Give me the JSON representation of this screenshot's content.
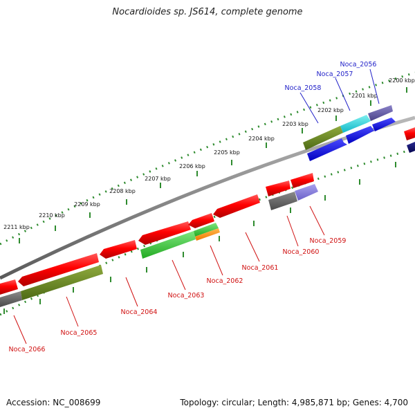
{
  "title": "Nocardioides sp. JS614, complete genome",
  "footer": {
    "accession": "Accession: NC_008699",
    "topology": "Topology: circular; Length: 4,985,871 bp; Genes: 4,700"
  },
  "colors": {
    "backbone": "#8a8a8a",
    "ruler": "#2e8b2e",
    "label_forward": "#1f1fc8",
    "label_reverse": "#d01010"
  },
  "ruler_ticks": [
    "2200 kbp",
    "2201 kbp",
    "2202 kbp",
    "2203 kbp",
    "2204 kbp",
    "2205 kbp",
    "2206 kbp",
    "2207 kbp",
    "2208 kbp",
    "2209 kbp",
    "2210 kbp",
    "2211 kbp"
  ],
  "gene_labels": {
    "forward": [
      "Noca_2056",
      "Noca_2057",
      "Noca_2058"
    ],
    "reverse": [
      "Noca_2059",
      "Noca_2060",
      "Noca_2061",
      "Noca_2062",
      "Noca_2063",
      "Noca_2064",
      "Noca_2065",
      "Noca_2066"
    ]
  }
}
